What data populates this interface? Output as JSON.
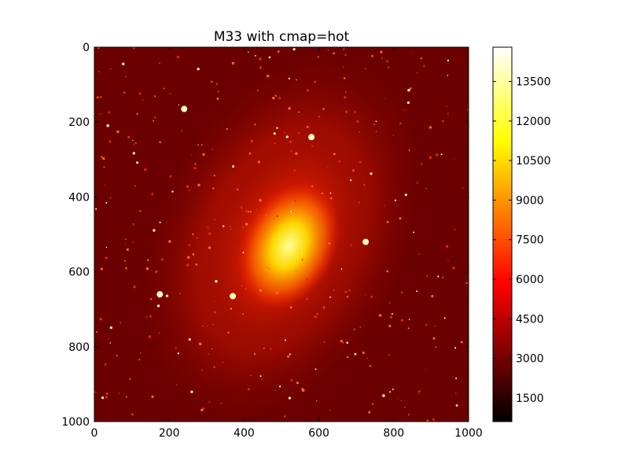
{
  "chart_data": {
    "type": "heatmap",
    "title": "M33 with cmap=hot",
    "colormap": "hot",
    "xlabel": "",
    "ylabel": "",
    "xlim": [
      0,
      1000
    ],
    "ylim": [
      1000,
      0
    ],
    "x_ticks": [
      "0",
      "200",
      "400",
      "600",
      "800",
      "1000"
    ],
    "y_ticks": [
      "0",
      "200",
      "400",
      "600",
      "800",
      "1000"
    ],
    "colorbar": {
      "range": [
        600,
        14800
      ],
      "ticks": [
        "1500",
        "3000",
        "4500",
        "6000",
        "7500",
        "9000",
        "10500",
        "12000",
        "13500"
      ]
    },
    "grid": false,
    "image_description_values": {
      "galaxy_core_center": [
        520,
        530
      ],
      "background_level": 3000,
      "core_level": 12000
    },
    "colors": {
      "low": "#0a0000",
      "mid": "#ff2a00",
      "high": "#ffff80",
      "max": "#ffffff"
    }
  }
}
